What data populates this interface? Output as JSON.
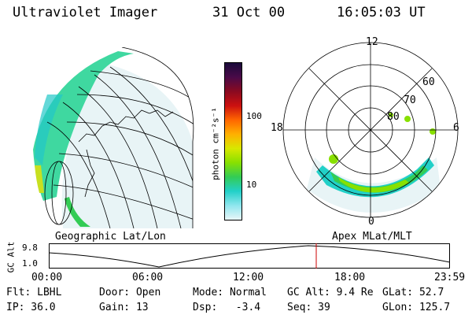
{
  "header": {
    "instrument": "Ultraviolet Imager",
    "date": "31 Oct 00",
    "time": "16:05:03 UT"
  },
  "colorbar": {
    "label": "photon cm⁻²s⁻¹",
    "ticks": [
      "100",
      "10"
    ],
    "stops": [
      "#1a0a3a",
      "#4a0a48",
      "#8a0a20",
      "#cc1010",
      "#ff6600",
      "#ffb000",
      "#d8e800",
      "#88e000",
      "#33cc55",
      "#22d0c8",
      "#8fe6ee",
      "#e8f6f8"
    ]
  },
  "polar": {
    "top": "12",
    "left": "18",
    "right": "6",
    "bottom": "0",
    "rings": [
      "60",
      "70",
      "80"
    ]
  },
  "timeline": {
    "left_label": "Geographic Lat/Lon",
    "right_label": "Apex MLat/MLT",
    "y_axis_label": "GC Alt",
    "y_ticks": [
      "9.8",
      "1.0"
    ],
    "x_ticks": [
      "00:00",
      "06:00",
      "12:00",
      "18:00",
      "23:59"
    ],
    "marker_color": "#cc0000"
  },
  "info": {
    "row1": [
      "Flt: LBHL",
      "Door: Open",
      "Mode: Normal",
      "GC Alt: 9.4 Re",
      "GLat: 52.7"
    ],
    "row2": [
      "IP: 36.0",
      "Gain: 13",
      "Dsp:   -3.4",
      "Seq: 39",
      "GLon: 125.7"
    ]
  }
}
